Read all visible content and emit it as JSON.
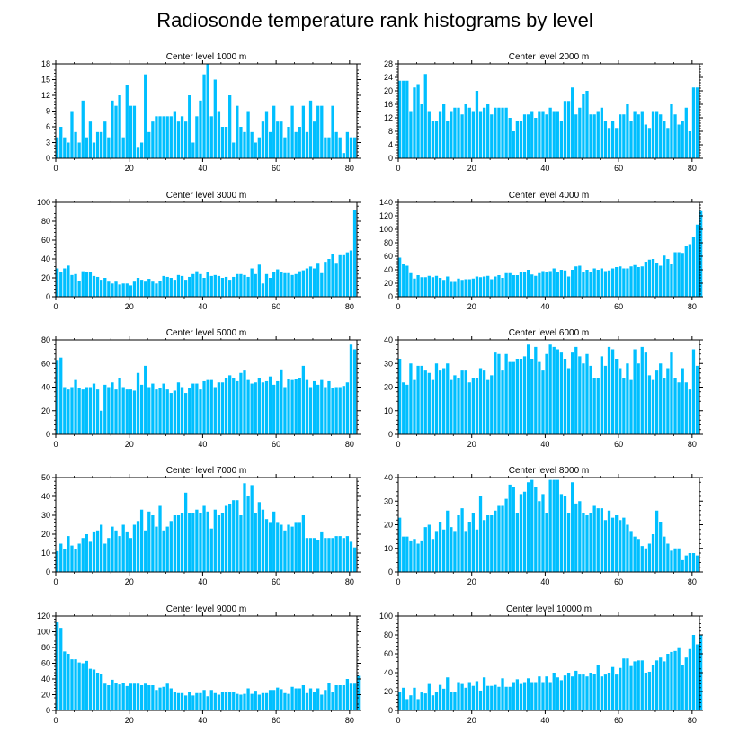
{
  "title": "Radiosonde temperature rank histograms by level",
  "bar_color": "#00BFFF",
  "chart_data": [
    {
      "type": "bar",
      "title": "Center level 1000 m",
      "xlim": [
        0,
        82
      ],
      "xticks": [
        0,
        20,
        40,
        60,
        80
      ],
      "ylim": [
        0,
        18
      ],
      "yticks": [
        0,
        3,
        6,
        9,
        12,
        15,
        18
      ],
      "values": [
        4,
        6,
        4,
        3,
        9,
        5,
        3,
        11,
        4,
        7,
        3,
        5,
        5,
        7,
        4,
        11,
        10,
        12,
        4,
        14,
        10,
        10,
        2,
        3,
        16,
        5,
        7,
        8,
        8,
        8,
        8,
        8,
        9,
        7,
        8,
        7,
        12,
        3,
        8,
        11,
        16,
        18,
        8,
        15,
        9,
        6,
        6,
        12,
        3,
        10,
        6,
        5,
        9,
        5,
        3,
        4,
        7,
        9,
        5,
        10,
        7,
        7,
        4,
        6,
        10,
        5,
        6,
        10,
        5,
        11,
        7,
        10,
        10,
        4,
        4,
        10,
        5,
        4,
        1,
        5,
        4,
        4
      ]
    },
    {
      "type": "bar",
      "title": "Center level 2000 m",
      "xlim": [
        0,
        82
      ],
      "xticks": [
        0,
        20,
        40,
        60,
        80
      ],
      "ylim": [
        0,
        28
      ],
      "yticks": [
        0,
        4,
        8,
        12,
        16,
        20,
        24,
        28
      ],
      "values": [
        23,
        23,
        23,
        14,
        21,
        22,
        16,
        25,
        14,
        11,
        11,
        14,
        16,
        11,
        14,
        15,
        15,
        13,
        16,
        15,
        14,
        20,
        14,
        15,
        16,
        13,
        15,
        15,
        15,
        15,
        12,
        8,
        11,
        11,
        13,
        13,
        14,
        12,
        14,
        14,
        13,
        15,
        14,
        14,
        11,
        17,
        17,
        21,
        13,
        15,
        19,
        20,
        13,
        13,
        14,
        15,
        11,
        9,
        11,
        9,
        13,
        13,
        16,
        11,
        14,
        13,
        14,
        10,
        9,
        14,
        14,
        13,
        11,
        9,
        16,
        13,
        10,
        11,
        15,
        8,
        21,
        21
      ]
    },
    {
      "type": "bar",
      "title": "Center level 3000 m",
      "xlim": [
        0,
        82
      ],
      "xticks": [
        0,
        20,
        40,
        60,
        80
      ],
      "ylim": [
        0,
        100
      ],
      "yticks": [
        0,
        20,
        40,
        60,
        80,
        100
      ],
      "values": [
        30,
        26,
        30,
        33,
        23,
        24,
        17,
        27,
        26,
        26,
        22,
        21,
        18,
        20,
        16,
        14,
        16,
        13,
        14,
        14,
        12,
        16,
        20,
        18,
        16,
        19,
        16,
        14,
        17,
        22,
        21,
        20,
        18,
        23,
        22,
        18,
        21,
        24,
        27,
        24,
        20,
        26,
        22,
        23,
        22,
        20,
        21,
        18,
        21,
        24,
        24,
        23,
        21,
        30,
        24,
        34,
        14,
        24,
        20,
        26,
        29,
        26,
        25,
        25,
        23,
        24,
        27,
        28,
        30,
        32,
        30,
        35,
        25,
        37,
        40,
        45,
        35,
        44,
        44,
        47,
        49,
        92
      ]
    },
    {
      "type": "bar",
      "title": "Center level 4000 m",
      "xlim": [
        0,
        82
      ],
      "xticks": [
        0,
        20,
        40,
        60,
        80
      ],
      "ylim": [
        0,
        140
      ],
      "yticks": [
        0,
        20,
        40,
        60,
        80,
        100,
        120,
        140
      ],
      "values": [
        58,
        48,
        46,
        35,
        27,
        32,
        29,
        29,
        31,
        29,
        31,
        28,
        25,
        30,
        22,
        22,
        27,
        25,
        26,
        26,
        27,
        30,
        29,
        30,
        31,
        26,
        30,
        32,
        28,
        35,
        35,
        32,
        32,
        36,
        36,
        40,
        33,
        31,
        35,
        38,
        36,
        38,
        42,
        36,
        40,
        39,
        30,
        40,
        45,
        46,
        36,
        40,
        36,
        42,
        40,
        42,
        38,
        39,
        42,
        44,
        45,
        42,
        42,
        45,
        47,
        44,
        45,
        52,
        55,
        56,
        50,
        46,
        61,
        56,
        48,
        66,
        66,
        65,
        75,
        78,
        88,
        107,
        127
      ]
    },
    {
      "type": "bar",
      "title": "Center level 5000 m",
      "xlim": [
        0,
        82
      ],
      "xticks": [
        0,
        20,
        40,
        60,
        80
      ],
      "ylim": [
        0,
        80
      ],
      "yticks": [
        0,
        20,
        40,
        60,
        80
      ],
      "values": [
        63,
        65,
        40,
        38,
        40,
        46,
        39,
        38,
        40,
        40,
        43,
        38,
        20,
        42,
        40,
        44,
        38,
        48,
        40,
        38,
        38,
        37,
        52,
        42,
        58,
        40,
        43,
        38,
        39,
        43,
        38,
        35,
        37,
        44,
        40,
        35,
        39,
        43,
        43,
        38,
        45,
        46,
        46,
        40,
        44,
        44,
        48,
        50,
        48,
        45,
        52,
        54,
        46,
        43,
        44,
        48,
        44,
        45,
        49,
        42,
        45,
        55,
        40,
        47,
        46,
        47,
        48,
        58,
        46,
        40,
        45,
        42,
        46,
        40,
        45,
        39,
        40,
        40,
        41,
        44,
        76,
        72
      ]
    },
    {
      "type": "bar",
      "title": "Center level 6000 m",
      "xlim": [
        0,
        82
      ],
      "xticks": [
        0,
        20,
        40,
        60,
        80
      ],
      "ylim": [
        0,
        40
      ],
      "yticks": [
        0,
        10,
        20,
        30,
        40
      ],
      "values": [
        32,
        22,
        21,
        30,
        23,
        29,
        29,
        27,
        26,
        23,
        30,
        27,
        28,
        30,
        23,
        25,
        24,
        27,
        27,
        22,
        24,
        24,
        28,
        27,
        23,
        25,
        35,
        34,
        27,
        34,
        31,
        31,
        32,
        32,
        33,
        38,
        32,
        37,
        31,
        27,
        34,
        38,
        37,
        36,
        35,
        32,
        28,
        35,
        37,
        33,
        30,
        34,
        29,
        24,
        24,
        33,
        29,
        37,
        36,
        32,
        28,
        24,
        30,
        23,
        36,
        30,
        37,
        35,
        25,
        23,
        27,
        30,
        24,
        28,
        35,
        24,
        22,
        28,
        22,
        19,
        36,
        29
      ]
    },
    {
      "type": "bar",
      "title": "Center level 7000 m",
      "xlim": [
        0,
        82
      ],
      "xticks": [
        0,
        20,
        40,
        60,
        80
      ],
      "ylim": [
        0,
        50
      ],
      "yticks": [
        0,
        10,
        20,
        30,
        40,
        50
      ],
      "values": [
        11,
        15,
        12,
        19,
        14,
        12,
        15,
        18,
        20,
        16,
        21,
        22,
        25,
        15,
        18,
        24,
        22,
        19,
        25,
        21,
        18,
        25,
        27,
        33,
        22,
        32,
        30,
        24,
        35,
        22,
        24,
        27,
        30,
        30,
        31,
        42,
        31,
        31,
        33,
        31,
        35,
        32,
        23,
        33,
        30,
        31,
        35,
        36,
        38,
        38,
        30,
        47,
        40,
        46,
        31,
        37,
        33,
        28,
        26,
        32,
        26,
        25,
        22,
        25,
        24,
        26,
        26,
        30,
        18,
        18,
        18,
        17,
        21,
        18,
        18,
        18,
        19,
        19,
        18,
        19,
        16,
        13
      ]
    },
    {
      "type": "bar",
      "title": "Center level 8000 m",
      "xlim": [
        0,
        82
      ],
      "xticks": [
        0,
        20,
        40,
        60,
        80
      ],
      "ylim": [
        0,
        40
      ],
      "yticks": [
        0,
        10,
        20,
        30,
        40
      ],
      "values": [
        23,
        15,
        15,
        13,
        14,
        12,
        13,
        19,
        20,
        14,
        17,
        21,
        18,
        26,
        19,
        17,
        24,
        27,
        17,
        21,
        25,
        18,
        32,
        22,
        24,
        24,
        26,
        28,
        28,
        31,
        37,
        36,
        25,
        33,
        34,
        38,
        39,
        36,
        30,
        33,
        25,
        39,
        39,
        39,
        33,
        32,
        25,
        38,
        29,
        30,
        25,
        24,
        25,
        28,
        27,
        27,
        22,
        26,
        23,
        24,
        22,
        23,
        20,
        17,
        15,
        14,
        11,
        10,
        12,
        16,
        26,
        21,
        15,
        12,
        9,
        10,
        10,
        5,
        7,
        8,
        8,
        7
      ]
    },
    {
      "type": "bar",
      "title": "Center level 9000 m",
      "xlim": [
        0,
        82
      ],
      "xticks": [
        0,
        20,
        40,
        60,
        80
      ],
      "ylim": [
        0,
        120
      ],
      "yticks": [
        0,
        20,
        40,
        60,
        80,
        100,
        120
      ],
      "values": [
        112,
        105,
        75,
        72,
        65,
        65,
        61,
        60,
        63,
        53,
        52,
        48,
        46,
        34,
        32,
        39,
        35,
        33,
        35,
        31,
        34,
        34,
        34,
        32,
        34,
        32,
        32,
        26,
        29,
        30,
        34,
        28,
        24,
        22,
        22,
        19,
        24,
        19,
        22,
        22,
        26,
        18,
        26,
        22,
        20,
        24,
        24,
        23,
        24,
        21,
        20,
        21,
        28,
        21,
        25,
        20,
        22,
        22,
        26,
        26,
        29,
        27,
        22,
        21,
        30,
        28,
        28,
        32,
        22,
        28,
        24,
        28,
        20,
        26,
        35,
        23,
        32,
        32,
        32,
        40,
        34,
        34,
        44
      ]
    },
    {
      "type": "bar",
      "title": "Center level 10000 m",
      "xlim": [
        0,
        82
      ],
      "xticks": [
        0,
        20,
        40,
        60,
        80
      ],
      "ylim": [
        0,
        100
      ],
      "yticks": [
        0,
        20,
        40,
        60,
        80,
        100
      ],
      "values": [
        20,
        24,
        12,
        16,
        24,
        12,
        19,
        18,
        28,
        16,
        20,
        27,
        23,
        35,
        20,
        20,
        30,
        28,
        24,
        30,
        26,
        31,
        21,
        35,
        26,
        26,
        27,
        25,
        34,
        25,
        25,
        30,
        33,
        28,
        30,
        34,
        30,
        30,
        36,
        30,
        36,
        30,
        40,
        35,
        32,
        37,
        40,
        36,
        42,
        38,
        38,
        36,
        40,
        39,
        48,
        36,
        38,
        40,
        46,
        38,
        45,
        55,
        55,
        47,
        52,
        53,
        53,
        40,
        41,
        48,
        53,
        56,
        52,
        60,
        62,
        63,
        66,
        48,
        56,
        65,
        80,
        70,
        80
      ]
    }
  ]
}
